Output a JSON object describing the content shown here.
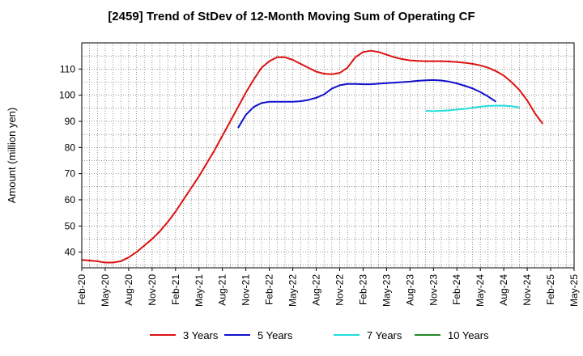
{
  "chart_data": {
    "type": "line",
    "title": "[2459]  Trend of StDev of 12-Month Moving Sum of Operating CF",
    "xlabel": "",
    "ylabel": "Amount (million yen)",
    "x_ticks": [
      "Feb-20",
      "May-20",
      "Aug-20",
      "Nov-20",
      "Feb-21",
      "May-21",
      "Aug-21",
      "Nov-21",
      "Feb-22",
      "May-22",
      "Aug-22",
      "Nov-22",
      "Feb-23",
      "May-23",
      "Aug-23",
      "Nov-23",
      "Feb-24",
      "May-24",
      "Aug-24",
      "Nov-24",
      "Feb-25",
      "May-25"
    ],
    "y_ticks": [
      40,
      50,
      60,
      70,
      80,
      90,
      100,
      110
    ],
    "ylim": [
      34,
      120
    ],
    "grid": true,
    "legend_position": "bottom",
    "x_start": "2020-02",
    "series": [
      {
        "name": "3 Years",
        "color": "#dd1111",
        "start": "2020-02",
        "values": [
          37,
          36.8,
          36.5,
          36,
          36,
          36.5,
          38,
          40,
          42.5,
          45,
          48,
          51.5,
          55.5,
          60,
          64.5,
          69,
          74,
          79,
          84.5,
          90,
          95.5,
          101,
          106,
          110.5,
          113,
          114.5,
          114.5,
          113.5,
          112,
          110.5,
          109,
          108.2,
          108,
          108.5,
          110.5,
          114.5,
          116.5,
          117,
          116.5,
          115.5,
          114.5,
          113.8,
          113.3,
          113.1,
          113,
          113,
          113,
          112.9,
          112.7,
          112.4,
          112,
          111.4,
          110.5,
          109.2,
          107.5,
          105,
          102,
          98,
          93,
          89
        ]
      },
      {
        "name": "5 Years",
        "color": "#1111cc",
        "start": "2021-10",
        "values": [
          87.5,
          92.5,
          95.5,
          97,
          97.5,
          97.5,
          97.5,
          97.5,
          97.7,
          98.2,
          99,
          100.3,
          102.5,
          103.8,
          104.3,
          104.3,
          104.2,
          104.2,
          104.4,
          104.6,
          104.8,
          105,
          105.2,
          105.5,
          105.7,
          105.8,
          105.6,
          105.2,
          104.5,
          103.6,
          102.6,
          101.2,
          99.5,
          97.5
        ]
      },
      {
        "name": "7 Years",
        "color": "#22dddd",
        "start": "2023-10",
        "values": [
          94,
          93.9,
          94,
          94.2,
          94.5,
          94.8,
          95.2,
          95.6,
          95.9,
          96,
          96,
          95.8,
          95.3
        ]
      },
      {
        "name": "10 Years",
        "color": "#228b22",
        "start": "2023-10",
        "values": []
      }
    ]
  }
}
